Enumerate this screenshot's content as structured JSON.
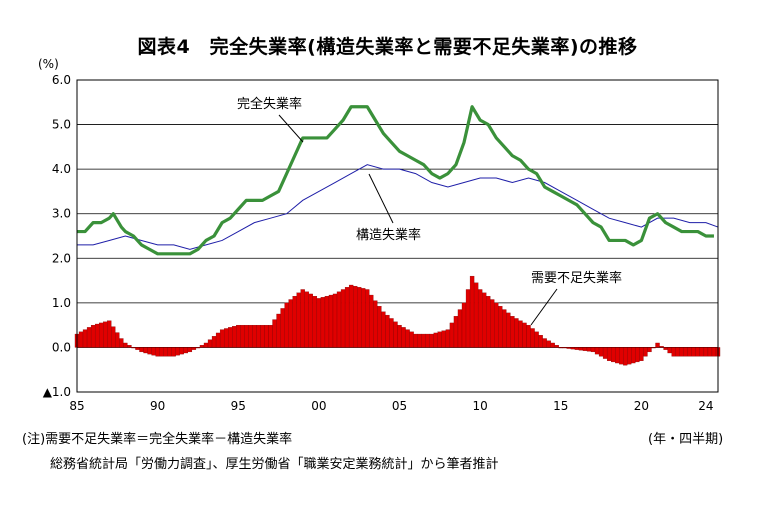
{
  "title": "図表4　完全失業率(構造失業率と需要不足失業率)の推移",
  "notes": {
    "formula": "(注)需要不足失業率＝完全失業率－構造失業率",
    "period_unit": "(年・四半期)",
    "source": "総務省統計局「労働力調査」、厚生労働省「職業安定業務統計」から筆者推計"
  },
  "chart_data": {
    "type": "line+bar",
    "ylabel": "(%)",
    "ylim": [
      -1.0,
      6.0
    ],
    "yticks": [
      {
        "v": 6.0,
        "label": "6.0"
      },
      {
        "v": 5.0,
        "label": "5.0"
      },
      {
        "v": 4.0,
        "label": "4.0"
      },
      {
        "v": 3.0,
        "label": "3.0"
      },
      {
        "v": 2.0,
        "label": "2.0"
      },
      {
        "v": 1.0,
        "label": "1.0"
      },
      {
        "v": 0.0,
        "label": "0.0"
      },
      {
        "v": -1.0,
        "label": "▲1.0"
      }
    ],
    "xlim": [
      1985,
      2024.75
    ],
    "xticks": [
      {
        "v": 1985,
        "label": "85"
      },
      {
        "v": 1990,
        "label": "90"
      },
      {
        "v": 1995,
        "label": "95"
      },
      {
        "v": 2000,
        "label": "00"
      },
      {
        "v": 2005,
        "label": "05"
      },
      {
        "v": 2010,
        "label": "10"
      },
      {
        "v": 2015,
        "label": "15"
      },
      {
        "v": 2020,
        "label": "20"
      },
      {
        "v": 2024,
        "label": "24"
      }
    ],
    "grid": true,
    "colors": {
      "total": "#3a913a",
      "structural": "#1f1fa8",
      "demand": "#e00000"
    },
    "series_total": {
      "name": "完全失業率",
      "points": [
        [
          1985,
          2.6
        ],
        [
          1985.5,
          2.6
        ],
        [
          1986,
          2.8
        ],
        [
          1986.5,
          2.8
        ],
        [
          1987,
          2.9
        ],
        [
          1987.25,
          3.0
        ],
        [
          1987.75,
          2.7
        ],
        [
          1988,
          2.6
        ],
        [
          1988.5,
          2.5
        ],
        [
          1989,
          2.3
        ],
        [
          1989.5,
          2.2
        ],
        [
          1990,
          2.1
        ],
        [
          1990.5,
          2.1
        ],
        [
          1991,
          2.1
        ],
        [
          1991.5,
          2.1
        ],
        [
          1992,
          2.1
        ],
        [
          1992.5,
          2.2
        ],
        [
          1993,
          2.4
        ],
        [
          1993.5,
          2.5
        ],
        [
          1994,
          2.8
        ],
        [
          1994.5,
          2.9
        ],
        [
          1995,
          3.1
        ],
        [
          1995.5,
          3.3
        ],
        [
          1996,
          3.3
        ],
        [
          1996.5,
          3.3
        ],
        [
          1997,
          3.4
        ],
        [
          1997.5,
          3.5
        ],
        [
          1998,
          3.9
        ],
        [
          1998.5,
          4.3
        ],
        [
          1999,
          4.7
        ],
        [
          1999.5,
          4.7
        ],
        [
          2000,
          4.7
        ],
        [
          2000.5,
          4.7
        ],
        [
          2001,
          4.9
        ],
        [
          2001.5,
          5.1
        ],
        [
          2002,
          5.4
        ],
        [
          2002.5,
          5.4
        ],
        [
          2003,
          5.4
        ],
        [
          2003.5,
          5.1
        ],
        [
          2004,
          4.8
        ],
        [
          2004.5,
          4.6
        ],
        [
          2005,
          4.4
        ],
        [
          2005.5,
          4.3
        ],
        [
          2006,
          4.2
        ],
        [
          2006.5,
          4.1
        ],
        [
          2007,
          3.9
        ],
        [
          2007.5,
          3.8
        ],
        [
          2008,
          3.9
        ],
        [
          2008.5,
          4.1
        ],
        [
          2009,
          4.6
        ],
        [
          2009.5,
          5.4
        ],
        [
          2010,
          5.1
        ],
        [
          2010.5,
          5.0
        ],
        [
          2011,
          4.7
        ],
        [
          2011.5,
          4.5
        ],
        [
          2012,
          4.3
        ],
        [
          2012.5,
          4.2
        ],
        [
          2013,
          4.0
        ],
        [
          2013.5,
          3.9
        ],
        [
          2014,
          3.6
        ],
        [
          2014.5,
          3.5
        ],
        [
          2015,
          3.4
        ],
        [
          2015.5,
          3.3
        ],
        [
          2016,
          3.2
        ],
        [
          2016.5,
          3.0
        ],
        [
          2017,
          2.8
        ],
        [
          2017.5,
          2.7
        ],
        [
          2018,
          2.4
        ],
        [
          2018.5,
          2.4
        ],
        [
          2019,
          2.4
        ],
        [
          2019.5,
          2.3
        ],
        [
          2020,
          2.4
        ],
        [
          2020.5,
          2.9
        ],
        [
          2021,
          3.0
        ],
        [
          2021.5,
          2.8
        ],
        [
          2022,
          2.7
        ],
        [
          2022.5,
          2.6
        ],
        [
          2023,
          2.6
        ],
        [
          2023.5,
          2.6
        ],
        [
          2024,
          2.5
        ],
        [
          2024.5,
          2.5
        ]
      ]
    },
    "series_structural": {
      "name": "構造失業率",
      "points": [
        [
          1985,
          2.3
        ],
        [
          1986,
          2.3
        ],
        [
          1987,
          2.4
        ],
        [
          1988,
          2.5
        ],
        [
          1989,
          2.4
        ],
        [
          1990,
          2.3
        ],
        [
          1991,
          2.3
        ],
        [
          1992,
          2.2
        ],
        [
          1993,
          2.3
        ],
        [
          1994,
          2.4
        ],
        [
          1995,
          2.6
        ],
        [
          1996,
          2.8
        ],
        [
          1997,
          2.9
        ],
        [
          1998,
          3.0
        ],
        [
          1999,
          3.3
        ],
        [
          2000,
          3.5
        ],
        [
          2001,
          3.7
        ],
        [
          2002,
          3.9
        ],
        [
          2003,
          4.1
        ],
        [
          2004,
          4.0
        ],
        [
          2005,
          4.0
        ],
        [
          2006,
          3.9
        ],
        [
          2007,
          3.7
        ],
        [
          2008,
          3.6
        ],
        [
          2009,
          3.7
        ],
        [
          2010,
          3.8
        ],
        [
          2011,
          3.8
        ],
        [
          2012,
          3.7
        ],
        [
          2013,
          3.8
        ],
        [
          2014,
          3.7
        ],
        [
          2015,
          3.5
        ],
        [
          2016,
          3.3
        ],
        [
          2017,
          3.1
        ],
        [
          2018,
          2.9
        ],
        [
          2019,
          2.8
        ],
        [
          2020,
          2.7
        ],
        [
          2021,
          2.9
        ],
        [
          2022,
          2.9
        ],
        [
          2023,
          2.8
        ],
        [
          2024,
          2.8
        ],
        [
          2024.75,
          2.7
        ]
      ]
    },
    "series_demand_shortfall": {
      "name": "需要不足失業率",
      "points": [
        [
          1985,
          0.3
        ],
        [
          1986,
          0.5
        ],
        [
          1987,
          0.6
        ],
        [
          1987.75,
          0.2
        ],
        [
          1988,
          0.1
        ],
        [
          1988.5,
          0.0
        ],
        [
          1989,
          -0.1
        ],
        [
          1990,
          -0.2
        ],
        [
          1991,
          -0.2
        ],
        [
          1992,
          -0.1
        ],
        [
          1993,
          0.1
        ],
        [
          1994,
          0.4
        ],
        [
          1995,
          0.5
        ],
        [
          1996,
          0.5
        ],
        [
          1997,
          0.5
        ],
        [
          1998,
          1.0
        ],
        [
          1999,
          1.3
        ],
        [
          2000,
          1.1
        ],
        [
          2001,
          1.2
        ],
        [
          2002,
          1.4
        ],
        [
          2003,
          1.3
        ],
        [
          2004,
          0.8
        ],
        [
          2005,
          0.5
        ],
        [
          2006,
          0.3
        ],
        [
          2007,
          0.3
        ],
        [
          2008,
          0.4
        ],
        [
          2009,
          1.0
        ],
        [
          2009.5,
          1.6
        ],
        [
          2010,
          1.3
        ],
        [
          2011,
          1.0
        ],
        [
          2012,
          0.7
        ],
        [
          2013,
          0.5
        ],
        [
          2014,
          0.2
        ],
        [
          2015,
          0.0
        ],
        [
          2016,
          -0.05
        ],
        [
          2017,
          -0.1
        ],
        [
          2018,
          -0.3
        ],
        [
          2019,
          -0.4
        ],
        [
          2020,
          -0.3
        ],
        [
          2021,
          0.1
        ],
        [
          2022,
          -0.2
        ],
        [
          2023,
          -0.2
        ],
        [
          2024,
          -0.2
        ],
        [
          2024.75,
          -0.2
        ]
      ]
    },
    "annotations": [
      {
        "text": "完全失業率"
      },
      {
        "text": "構造失業率"
      },
      {
        "text": "需要不足失業率"
      }
    ]
  }
}
